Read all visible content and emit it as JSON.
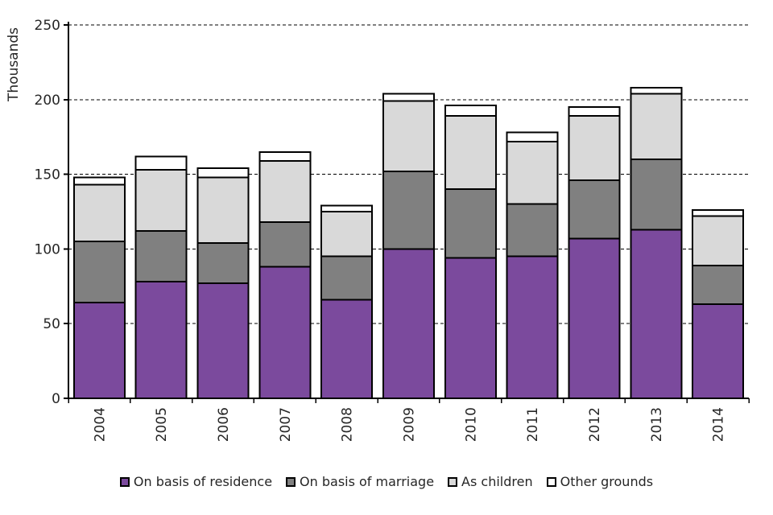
{
  "chart_data": {
    "type": "bar",
    "stacked": true,
    "title": "",
    "xlabel": "",
    "ylabel": "Thousands",
    "ylim": [
      0,
      250
    ],
    "yticks": [
      0,
      50,
      100,
      150,
      200,
      250
    ],
    "grid": "horizontal-dashed",
    "legend_position": "bottom",
    "categories": [
      "2004",
      "2005",
      "2006",
      "2007",
      "2008",
      "2009",
      "2010",
      "2011",
      "2012",
      "2013",
      "2014"
    ],
    "series": [
      {
        "name": "On basis of residence",
        "color": "#7B4A9D",
        "values": [
          64,
          78,
          77,
          88,
          66,
          100,
          94,
          95,
          107,
          113,
          63
        ]
      },
      {
        "name": "On basis of marriage",
        "color": "#808080",
        "values": [
          41,
          34,
          27,
          30,
          29,
          52,
          46,
          35,
          39,
          47,
          26
        ]
      },
      {
        "name": "As children",
        "color": "#D9D9D9",
        "values": [
          38,
          41,
          44,
          41,
          30,
          47,
          49,
          42,
          43,
          44,
          33
        ]
      },
      {
        "name": "Other grounds",
        "color": "#FFFFFF",
        "values": [
          5,
          9,
          6,
          6,
          4,
          5,
          7,
          6,
          6,
          4,
          4
        ]
      }
    ],
    "colors": {
      "bar_border": "#000000",
      "axis": "#000000",
      "gridline": "#000000",
      "text": "#262626",
      "background": "#FFFFFF"
    }
  }
}
